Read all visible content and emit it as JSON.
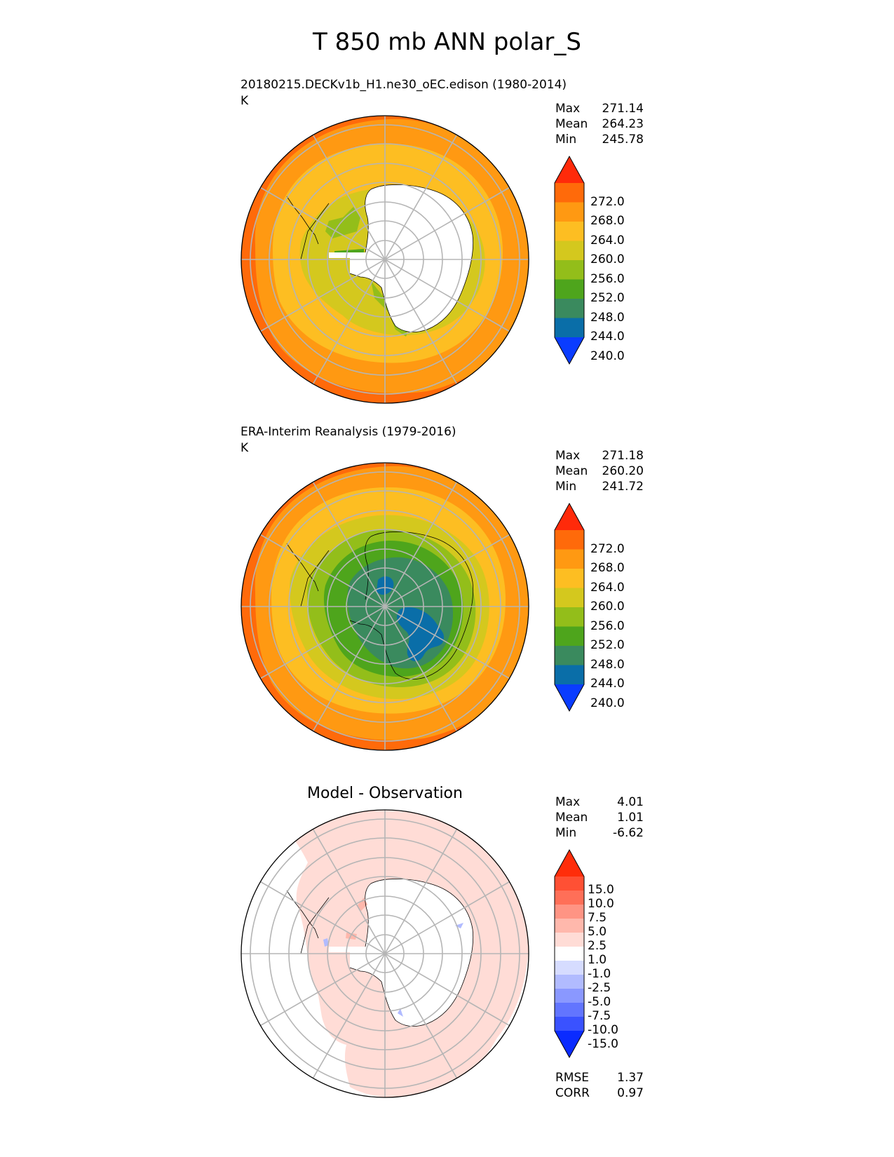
{
  "figure": {
    "title": "T 850 mb ANN polar_S"
  },
  "panels": [
    {
      "title": "20180215.DECKv1b_H1.ne30_oEC.edison (1980-2014)",
      "units": "K",
      "stats": [
        {
          "label": "Max",
          "value": "271.14"
        },
        {
          "label": "Mean",
          "value": "264.23"
        },
        {
          "label": "Min",
          "value": "245.78"
        }
      ]
    },
    {
      "title": "ERA-Interim Reanalysis (1979-2016)",
      "units": "K",
      "stats": [
        {
          "label": "Max",
          "value": "271.18"
        },
        {
          "label": "Mean",
          "value": "260.20"
        },
        {
          "label": "Min",
          "value": "241.72"
        }
      ]
    },
    {
      "title": "Model - Observation",
      "stats": [
        {
          "label": "Max",
          "value": "4.01"
        },
        {
          "label": "Mean",
          "value": "1.01"
        },
        {
          "label": "Min",
          "value": "-6.62"
        }
      ],
      "metrics": [
        {
          "label": "RMSE",
          "value": "1.37"
        },
        {
          "label": "CORR",
          "value": "0.97"
        }
      ]
    }
  ],
  "colorbars": {
    "temperature": {
      "ticks": [
        "272.0",
        "268.0",
        "264.0",
        "260.0",
        "256.0",
        "252.0",
        "248.0",
        "244.0",
        "240.0"
      ],
      "colors": [
        "#ff2a0a",
        "#ff6a0a",
        "#ff9912",
        "#fdbe22",
        "#d4c81e",
        "#93be1a",
        "#4ea51c",
        "#3a8a5e",
        "#0a6ea8",
        "#0a3cff"
      ]
    },
    "difference": {
      "ticks": [
        "15.0",
        "10.0",
        "7.5",
        "5.0",
        "2.5",
        "1.0",
        "-1.0",
        "-2.5",
        "-5.0",
        "-7.5",
        "-10.0",
        "-15.0"
      ],
      "colors": [
        "#ff2d0a",
        "#ff5034",
        "#ff6f58",
        "#ff9484",
        "#ffb8ac",
        "#ffdcd6",
        "#ffffff",
        "#d6dcff",
        "#b1bbff",
        "#8a98ff",
        "#6275ff",
        "#3a52ff",
        "#0a2bff"
      ]
    }
  }
}
